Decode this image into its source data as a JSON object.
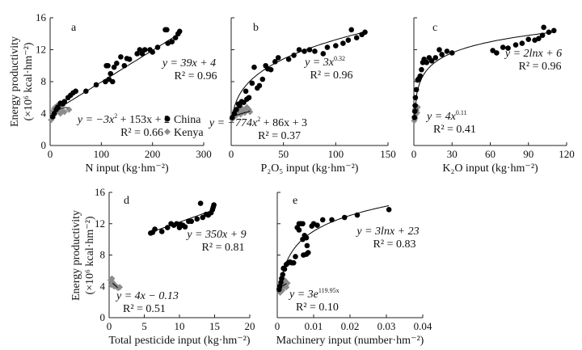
{
  "chart_data": {
    "type": "scatter",
    "y_label_line1": "Energy productivity",
    "y_label_line2": "(×10⁶ kcal·hm⁻²)",
    "legend": {
      "placement": "panel-a-bottom-right",
      "entries": [
        {
          "name": "China",
          "color": "#000000",
          "marker": "circle"
        },
        {
          "name": "Kenya",
          "color": "#8c8c8c",
          "marker": "diamond"
        }
      ]
    },
    "panels": [
      {
        "id": "a",
        "letter": "a",
        "xlabel": "N input (kg·hm⁻²)",
        "xlim": [
          0,
          300
        ],
        "xticks": [
          "0",
          "100",
          "200",
          "300"
        ],
        "xtick_values": [
          0,
          100,
          200,
          300
        ],
        "ylim": [
          0,
          16
        ],
        "yticks": [
          "0",
          "4",
          "8",
          "12",
          "16"
        ],
        "ytick_values": [
          0,
          4,
          8,
          12,
          16
        ],
        "show_ytick_labels": true,
        "china": [
          [
            5,
            3.6
          ],
          [
            8,
            4
          ],
          [
            12,
            4.5
          ],
          [
            15,
            4.8
          ],
          [
            20,
            5.3
          ],
          [
            25,
            5.2
          ],
          [
            28,
            5.5
          ],
          [
            35,
            6
          ],
          [
            40,
            6.3
          ],
          [
            45,
            6.6
          ],
          [
            50,
            6.8
          ],
          [
            70,
            6.8
          ],
          [
            90,
            7.6
          ],
          [
            108,
            8
          ],
          [
            110,
            10
          ],
          [
            113,
            10
          ],
          [
            115,
            8.3
          ],
          [
            118,
            9
          ],
          [
            122,
            8
          ],
          [
            125,
            9.8
          ],
          [
            130,
            10.3
          ],
          [
            138,
            11.1
          ],
          [
            145,
            10
          ],
          [
            150,
            10.9
          ],
          [
            155,
            10.8
          ],
          [
            170,
            11.5
          ],
          [
            175,
            12
          ],
          [
            180,
            11.5
          ],
          [
            185,
            12
          ],
          [
            195,
            12
          ],
          [
            200,
            11.7
          ],
          [
            210,
            12.3
          ],
          [
            225,
            14.5
          ],
          [
            228,
            14.5
          ],
          [
            230,
            12.8
          ],
          [
            238,
            13
          ],
          [
            245,
            13.5
          ],
          [
            250,
            14
          ],
          [
            253,
            14.3
          ]
        ],
        "kenya": [
          [
            2,
            3.2
          ],
          [
            4,
            3.8
          ],
          [
            5,
            3.5
          ],
          [
            6,
            4.3
          ],
          [
            8,
            4.6
          ],
          [
            10,
            4.8
          ],
          [
            12,
            4.2
          ],
          [
            14,
            5
          ],
          [
            16,
            4.4
          ],
          [
            18,
            4.5
          ],
          [
            20,
            4
          ],
          [
            24,
            4.4
          ],
          [
            28,
            4.2
          ],
          [
            37,
            4.5
          ]
        ],
        "china_fit": {
          "type": "linear",
          "a": 0.0396,
          "b": 4.0,
          "xrange": [
            5,
            253
          ]
        },
        "kenya_fit": {
          "type": "quadratic",
          "a": -0.0015,
          "b": 0.09,
          "c": 3.4,
          "xrange": [
            3,
            35
          ]
        },
        "china_eq": {
          "main": "y = 39x + 4",
          "sup": "",
          "tail": "",
          "r2": "R² = 0.96"
        },
        "kenya_eq": {
          "main": "y = −3x",
          "sup": "2",
          "tail": " + 153x + 2",
          "r2": "R² = 0.66"
        }
      },
      {
        "id": "b",
        "letter": "b",
        "xlabel": "P₂O₅ input (kg·hm⁻²)",
        "xlim": [
          0,
          150
        ],
        "xticks": [
          "0",
          "50",
          "100",
          "150"
        ],
        "xtick_values": [
          0,
          50,
          100,
          150
        ],
        "ylim": [
          0,
          16
        ],
        "yticks": [],
        "ytick_values": [
          0,
          4,
          8,
          12,
          16
        ],
        "show_ytick_labels": false,
        "china": [
          [
            1,
            3.5
          ],
          [
            3,
            4
          ],
          [
            5,
            4.5
          ],
          [
            7,
            5.2
          ],
          [
            8,
            5
          ],
          [
            10,
            5.5
          ],
          [
            12,
            5.4
          ],
          [
            14,
            6.8
          ],
          [
            15,
            5.8
          ],
          [
            17,
            6
          ],
          [
            20,
            7.8
          ],
          [
            22,
            9.8
          ],
          [
            25,
            7.2
          ],
          [
            27,
            7.5
          ],
          [
            30,
            8.3
          ],
          [
            33,
            10
          ],
          [
            35,
            9.6
          ],
          [
            38,
            9.5
          ],
          [
            42,
            10.5
          ],
          [
            45,
            11
          ],
          [
            55,
            10.8
          ],
          [
            60,
            11.3
          ],
          [
            65,
            12
          ],
          [
            70,
            11.8
          ],
          [
            75,
            12
          ],
          [
            80,
            11.8
          ],
          [
            88,
            11.5
          ],
          [
            92,
            12.3
          ],
          [
            100,
            12.5
          ],
          [
            107,
            12.8
          ],
          [
            112,
            13.2
          ],
          [
            115,
            14.5
          ],
          [
            120,
            13.5
          ],
          [
            125,
            13.9
          ],
          [
            128,
            14.2
          ]
        ],
        "kenya": [
          [
            1,
            3.3
          ],
          [
            2,
            4
          ],
          [
            3,
            3.6
          ],
          [
            4,
            4.4
          ],
          [
            5,
            3.8
          ],
          [
            6,
            4.6
          ],
          [
            8,
            4.2
          ],
          [
            9,
            3.9
          ],
          [
            10,
            4.7
          ],
          [
            12,
            4.4
          ],
          [
            13,
            4.1
          ],
          [
            15,
            4.8
          ],
          [
            17,
            4.5
          ],
          [
            18,
            4.2
          ]
        ],
        "china_fit": {
          "type": "power",
          "a": 3.5,
          "b": 0.289,
          "xrange": [
            1,
            128
          ]
        },
        "kenya_fit": {
          "type": "linear",
          "a": 0.04,
          "b": 3.6,
          "xrange": [
            1,
            18
          ]
        },
        "china_eq": {
          "main": "y = 3x",
          "sup": "0.32",
          "tail": "",
          "r2": "R² = 0.96"
        },
        "kenya_eq": {
          "main": "y = −774x",
          "sup": "2",
          "tail": " + 86x + 3",
          "r2": "R² = 0.37"
        }
      },
      {
        "id": "c",
        "letter": "c",
        "xlabel": "K₂O input (kg·hm⁻²)",
        "xlim": [
          0,
          120
        ],
        "xticks": [
          "0",
          "30",
          "60",
          "90",
          "120"
        ],
        "xtick_values": [
          0,
          30,
          60,
          90,
          120
        ],
        "ylim": [
          0,
          16
        ],
        "yticks": [],
        "ytick_values": [
          0,
          4,
          8,
          12,
          16
        ],
        "show_ytick_labels": false,
        "china": [
          [
            0.5,
            3.5
          ],
          [
            0.8,
            4.3
          ],
          [
            1,
            5
          ],
          [
            1.2,
            6
          ],
          [
            2,
            7
          ],
          [
            3,
            8.2
          ],
          [
            4,
            8.4
          ],
          [
            5,
            8.7
          ],
          [
            6,
            9.5
          ],
          [
            7,
            10.4
          ],
          [
            8,
            10.8
          ],
          [
            10,
            10.4
          ],
          [
            12,
            11
          ],
          [
            14,
            10.6
          ],
          [
            17,
            11
          ],
          [
            20,
            12
          ],
          [
            22,
            11.4
          ],
          [
            26,
            11.8
          ],
          [
            30,
            11.6
          ],
          [
            62,
            11.9
          ],
          [
            65,
            11.6
          ],
          [
            70,
            12.3
          ],
          [
            74,
            12.2
          ],
          [
            80,
            12.6
          ],
          [
            85,
            12.8
          ],
          [
            90,
            13.3
          ],
          [
            95,
            13.2
          ],
          [
            98,
            13.4
          ],
          [
            101,
            13.8
          ],
          [
            102,
            14.8
          ],
          [
            106,
            14.2
          ],
          [
            110,
            14.4
          ]
        ],
        "kenya": [
          [
            0.3,
            3.1
          ],
          [
            0.5,
            3.6
          ],
          [
            0.8,
            4.2
          ],
          [
            1,
            3.4
          ],
          [
            1.2,
            4.6
          ],
          [
            1.5,
            3.9
          ],
          [
            2,
            4.4
          ],
          [
            2.5,
            4.1
          ],
          [
            3,
            4.8
          ]
        ],
        "china_fit": {
          "type": "log",
          "a": 2.0,
          "b": 4.8,
          "xrange": [
            0.6,
            110
          ]
        },
        "kenya_fit": {
          "type": "linear",
          "a": 0.3,
          "b": 3.7,
          "xrange": [
            0.5,
            3
          ]
        },
        "china_eq": {
          "main": "y = 2lnx + 6",
          "sup": "",
          "tail": "",
          "r2": "R² = 0.96"
        },
        "kenya_eq": {
          "main": "y = 4x",
          "sup": "0.11",
          "tail": "",
          "r2": "R² = 0.41"
        }
      },
      {
        "id": "d",
        "letter": "d",
        "xlabel": "Total pesticide input (kg·hm⁻²)",
        "xlim": [
          0,
          20
        ],
        "xticks": [
          "0",
          "5",
          "10",
          "15",
          "20"
        ],
        "xtick_values": [
          0,
          5,
          10,
          15,
          20
        ],
        "ylim": [
          0,
          16
        ],
        "yticks": [
          "0",
          "4",
          "8",
          "12",
          "16"
        ],
        "ytick_values": [
          0,
          4,
          8,
          12,
          16
        ],
        "show_ytick_labels": true,
        "china": [
          [
            5.9,
            10.8
          ],
          [
            6.2,
            10.9
          ],
          [
            6.5,
            11.3
          ],
          [
            7.5,
            11
          ],
          [
            8.3,
            11.5
          ],
          [
            8.8,
            12
          ],
          [
            9.2,
            11.8
          ],
          [
            9.6,
            12
          ],
          [
            10,
            11.5
          ],
          [
            10.2,
            11.9
          ],
          [
            10.5,
            11.8
          ],
          [
            10.8,
            11.6
          ],
          [
            11.3,
            12.3
          ],
          [
            11.7,
            12.3
          ],
          [
            12.5,
            12.6
          ],
          [
            13,
            14.6
          ],
          [
            13.3,
            12.8
          ],
          [
            13.8,
            13.2
          ],
          [
            14.1,
            13.1
          ],
          [
            14.5,
            13.4
          ],
          [
            14.7,
            13.8
          ],
          [
            14.8,
            14.1
          ],
          [
            14.9,
            14.4
          ]
        ],
        "kenya": [
          [
            0.2,
            4.8
          ],
          [
            0.3,
            4.2
          ],
          [
            0.4,
            5
          ],
          [
            0.5,
            4.5
          ],
          [
            0.6,
            4.3
          ],
          [
            0.7,
            4
          ],
          [
            0.9,
            4.1
          ],
          [
            1.1,
            3.9
          ],
          [
            1.3,
            3.8
          ],
          [
            1.5,
            3.9
          ]
        ],
        "china_fit": {
          "type": "linear",
          "a": 0.32,
          "b": 9.0,
          "xrange": [
            6,
            15
          ]
        },
        "kenya_fit": {
          "type": "linear",
          "a": -0.8,
          "b": 4.8,
          "xrange": [
            0.5,
            1.2
          ]
        },
        "china_eq": {
          "main": "y = 350x + 9",
          "sup": "",
          "tail": "",
          "r2": "R² = 0.81"
        },
        "kenya_eq": {
          "main": "y = 4x − 0.13",
          "sup": "",
          "tail": "",
          "r2": "R² = 0.51"
        }
      },
      {
        "id": "e",
        "letter": "e",
        "xlabel": "Machinery input (number·hm⁻²)",
        "xlim": [
          0,
          0.04
        ],
        "xticks": [
          "0",
          "0.01",
          "0.02",
          "0.03",
          "0.04"
        ],
        "xtick_values": [
          0,
          0.01,
          0.02,
          0.03,
          0.04
        ],
        "ylim": [
          0,
          16
        ],
        "yticks": [],
        "ytick_values": [
          0,
          4,
          8,
          12,
          16
        ],
        "show_ytick_labels": false,
        "china": [
          [
            0.0005,
            3.6
          ],
          [
            0.0007,
            4
          ],
          [
            0.001,
            4.5
          ],
          [
            0.0012,
            5
          ],
          [
            0.0015,
            5.5
          ],
          [
            0.0017,
            6.3
          ],
          [
            0.002,
            6.2
          ],
          [
            0.0025,
            6.8
          ],
          [
            0.003,
            7
          ],
          [
            0.0035,
            7.1
          ],
          [
            0.004,
            7
          ],
          [
            0.0045,
            7
          ],
          [
            0.005,
            7.8
          ],
          [
            0.0055,
            11.5
          ],
          [
            0.006,
            12
          ],
          [
            0.006,
            11.2
          ],
          [
            0.0065,
            12
          ],
          [
            0.007,
            12
          ],
          [
            0.007,
            10
          ],
          [
            0.0072,
            8
          ],
          [
            0.0075,
            10.5
          ],
          [
            0.008,
            10.2
          ],
          [
            0.008,
            8.1
          ],
          [
            0.0082,
            9.2
          ],
          [
            0.0085,
            8.3
          ],
          [
            0.0095,
            11.7
          ],
          [
            0.01,
            12
          ],
          [
            0.011,
            11.8
          ],
          [
            0.0125,
            12.5
          ],
          [
            0.015,
            12.5
          ],
          [
            0.0185,
            12.8
          ],
          [
            0.022,
            13.1
          ],
          [
            0.0307,
            13.8
          ]
        ],
        "kenya": [
          [
            0.0008,
            3.2
          ],
          [
            0.001,
            3.8
          ],
          [
            0.0012,
            4.3
          ],
          [
            0.0014,
            3.5
          ],
          [
            0.0016,
            4.6
          ],
          [
            0.0018,
            4
          ],
          [
            0.002,
            4.8
          ],
          [
            0.0022,
            4.2
          ],
          [
            0.0025,
            3.9
          ],
          [
            0.0028,
            4.4
          ]
        ],
        "china_fit": {
          "type": "log",
          "a": 2.9,
          "b": 24.4,
          "xrange": [
            0.0016,
            0.0307
          ]
        },
        "kenya_fit": {
          "type": "linear",
          "a": 300,
          "b": 3.6,
          "xrange": [
            0.0015,
            0.0025
          ]
        },
        "china_eq": {
          "main": "y = 3lnx + 23",
          "sup": "",
          "tail": "",
          "r2": "R² = 0.83"
        },
        "kenya_eq": {
          "main": "y = 3e",
          "sup": "119.95x",
          "tail": "",
          "r2": "R² = 0.10"
        }
      }
    ]
  }
}
